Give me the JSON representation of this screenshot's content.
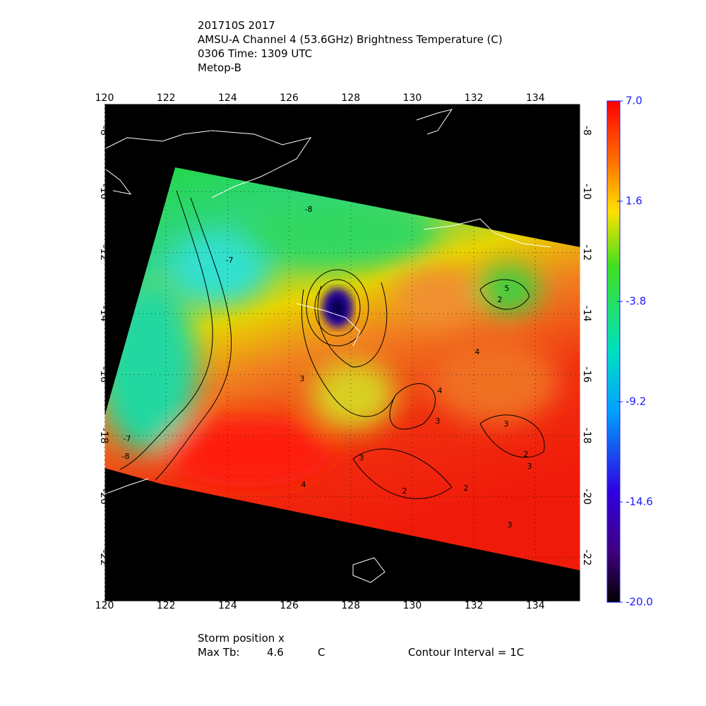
{
  "title_lines": [
    "201710S 2017",
    "AMSU-A Channel 4 (53.6GHz) Brightness Temperature (C)",
    "0306 Time: 1309 UTC",
    "Metop-B"
  ],
  "map": {
    "xlim": [
      120,
      135.46
    ],
    "ylim": [
      -23.44,
      -7.12
    ],
    "lon_ticks": [
      120,
      122,
      124,
      126,
      128,
      130,
      132,
      134
    ],
    "lat_ticks": [
      -8,
      -10,
      -12,
      -14,
      -16,
      -18,
      -20,
      -22
    ],
    "contour_labels": [
      -7,
      -8,
      -7,
      -8,
      5,
      2,
      4,
      3,
      3,
      2,
      2,
      3,
      2,
      3,
      3,
      4,
      3,
      4
    ]
  },
  "colorbar": {
    "lim": [
      -20,
      7
    ],
    "ticks": [
      {
        "value": 7,
        "label": "7.0"
      },
      1.6,
      -3.8,
      -9.2,
      -14.6,
      {
        "value": -20,
        "label": "-20.0"
      }
    ]
  },
  "footer": {
    "storm_position": "Storm position x",
    "max_tb_label": "Max Tb:",
    "max_tb_value": 4.6,
    "max_tb_unit": "C",
    "contour_interval": "Contour Interval = 1C"
  }
}
